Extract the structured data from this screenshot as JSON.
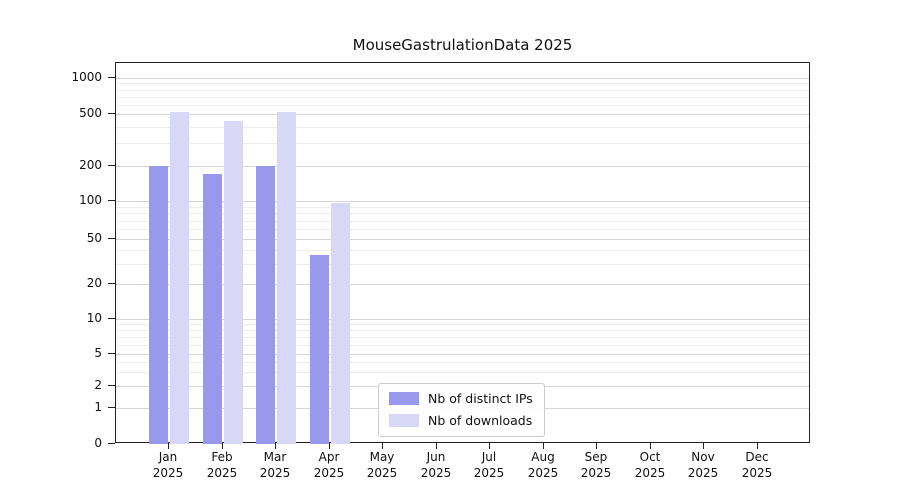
{
  "chart_data": {
    "type": "bar",
    "title": "MouseGastrulationData 2025",
    "categories": [
      "Jan",
      "Feb",
      "Mar",
      "Apr",
      "May",
      "Jun",
      "Jul",
      "Aug",
      "Sep",
      "Oct",
      "Nov",
      "Dec"
    ],
    "category_year": "2025",
    "series": [
      {
        "name": "Nb of distinct IPs",
        "color": "#9898ed",
        "values": [
          200,
          172,
          200,
          36,
          0,
          0,
          0,
          0,
          0,
          0,
          0,
          0
        ]
      },
      {
        "name": "Nb of downloads",
        "color": "#d8d8f6",
        "values": [
          520,
          445,
          515,
          96,
          0,
          0,
          0,
          0,
          0,
          0,
          0,
          0
        ]
      }
    ],
    "yticks": [
      0,
      1,
      2,
      5,
      10,
      20,
      50,
      100,
      200,
      500,
      1000
    ],
    "ylim": [
      0,
      1000
    ],
    "scale": "symlog",
    "grid": true,
    "legend_position": "bottom-center",
    "colors": {
      "axis": "#222222",
      "grid_major": "#d6d6d6",
      "grid_minor": "#ececec",
      "background": "#ffffff"
    }
  }
}
